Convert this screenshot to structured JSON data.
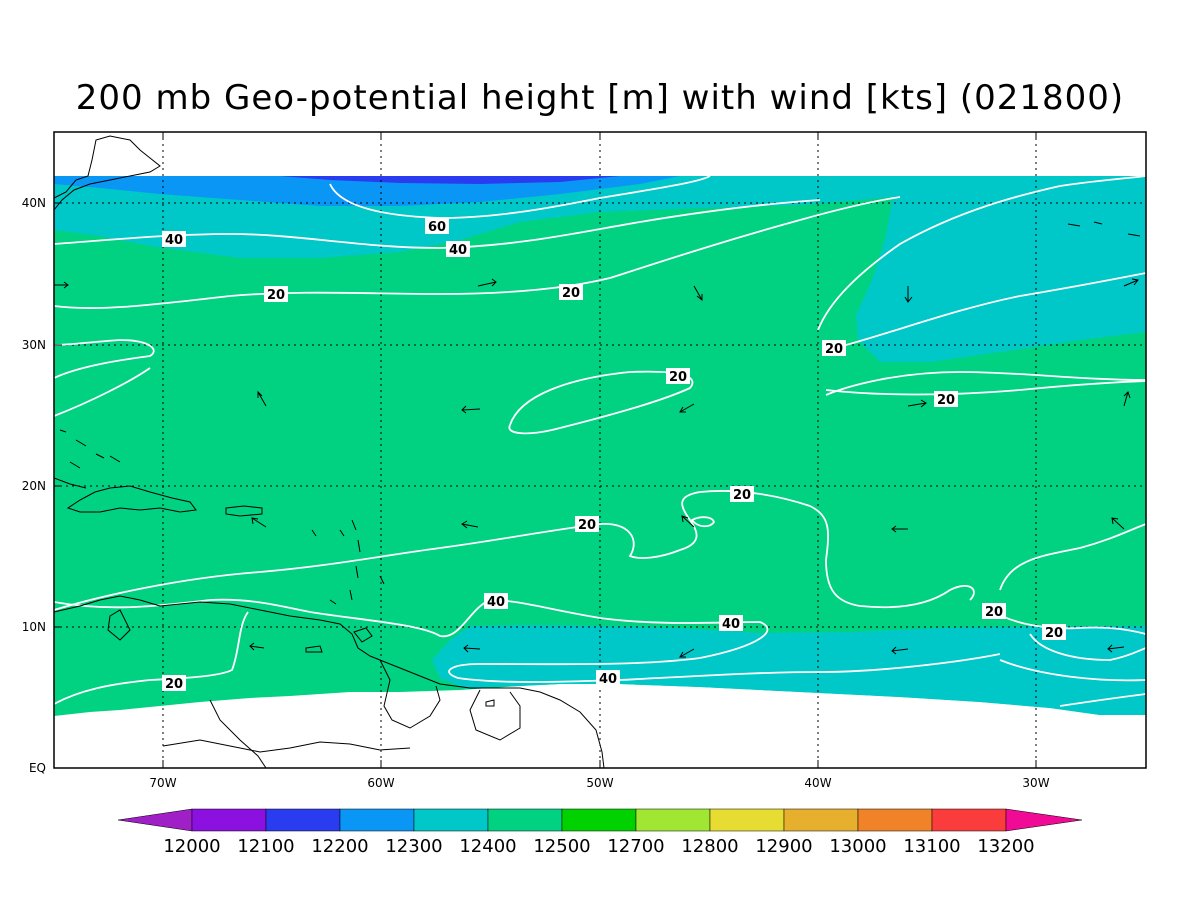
{
  "title": "200 mb Geo-potential height [m] with wind [kts] (021800)",
  "axes": {
    "x_ticks": [
      "70W",
      "60W",
      "50W",
      "40W",
      "30W"
    ],
    "y_ticks": [
      "EQ",
      "10N",
      "20N",
      "30N",
      "40N"
    ],
    "lon_range": [
      -75,
      -25
    ],
    "lat_range": [
      0,
      45
    ],
    "grid": "dotted"
  },
  "contour_labels": {
    "l60": "60",
    "l40a": "40",
    "l40b": "40",
    "l20a": "20",
    "l20b": "20",
    "l20c": "20",
    "l20d": "20",
    "l20e": "20",
    "l20f": "20",
    "l20g": "20",
    "l40c": "40",
    "l40d": "40",
    "l40e": "40",
    "l20h": "20",
    "l20i": "20",
    "l20j": "20"
  },
  "colorbar": {
    "levels": [
      "12000",
      "12100",
      "12200",
      "12300",
      "12400",
      "12500",
      "12700",
      "12800",
      "12900",
      "13000",
      "13100",
      "13200"
    ],
    "colors": [
      "#a020c8",
      "#8c10e0",
      "#2a3cf0",
      "#0a96f5",
      "#00c8c8",
      "#00d282",
      "#00d200",
      "#a0e632",
      "#e6dc32",
      "#e6af2d",
      "#f08228",
      "#fa3c3c",
      "#f00a96"
    ]
  },
  "field_colors": {
    "h12200": "#2a3cf0",
    "h12300": "#0a96f5",
    "h12400": "#00c8c8",
    "h12500": "#00d282"
  }
}
